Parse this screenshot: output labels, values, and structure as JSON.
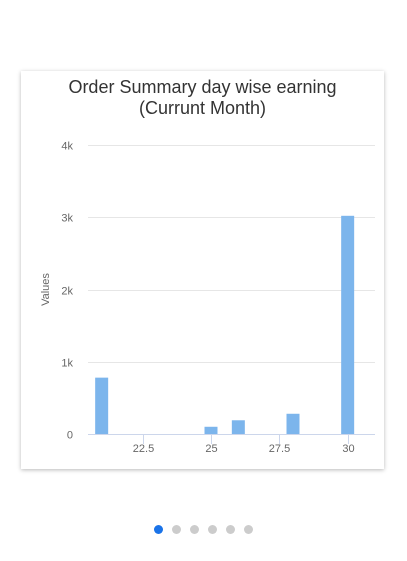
{
  "chart_data": {
    "type": "bar",
    "title_line1": "Order Summary day wise earning",
    "title_line2": "(Currunt Month)",
    "ylabel": "Values",
    "xlim": [
      20.5,
      31
    ],
    "ylim": [
      0,
      4000
    ],
    "x_ticks": [
      22.5,
      25,
      27.5,
      30
    ],
    "x_tick_labels": [
      "22.5",
      "25",
      "27.5",
      "30"
    ],
    "y_ticks": [
      0,
      1000,
      2000,
      3000,
      4000
    ],
    "y_tick_labels": [
      "0",
      "1k",
      "2k",
      "3k",
      "4k"
    ],
    "grid": true,
    "bar_color": "#7cb5ec",
    "points": [
      {
        "x": 21,
        "y": 780
      },
      {
        "x": 25,
        "y": 100
      },
      {
        "x": 26,
        "y": 190
      },
      {
        "x": 28,
        "y": 280
      },
      {
        "x": 30,
        "y": 3020
      }
    ]
  },
  "carousel": {
    "count": 6,
    "active_index": 0,
    "active_color": "#1a73e8",
    "inactive_color": "#cccccc"
  }
}
